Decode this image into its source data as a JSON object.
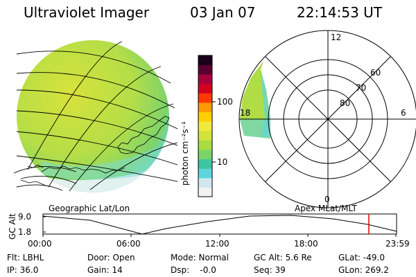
{
  "header": {
    "instrument": "Ultraviolet Imager",
    "date": "03 Jan 07",
    "time": "22:14:53 UT"
  },
  "colorbar": {
    "unit_label": "photon cm⁻²s⁻¹",
    "ticks": [
      {
        "label": "100",
        "value": 100
      },
      {
        "label": "10",
        "value": 10
      }
    ],
    "colors": [
      "#f2f2f2",
      "#cfe8f0",
      "#5fd6dd",
      "#3cc6a0",
      "#7ad46a",
      "#a8dc40",
      "#d2e43a",
      "#f0ea3c",
      "#ffd000",
      "#ff9a00",
      "#ff3a00",
      "#d40020",
      "#a8003c",
      "#5a0030",
      "#1a0018"
    ]
  },
  "left_panel": {
    "label": "Geographic Lat/Lon",
    "disk_color": "#b8e04a",
    "disk_edge_color": "#5fd6dd"
  },
  "right_panel": {
    "label": "Apex MLat/MLT",
    "mlt_labels": {
      "top": "12",
      "left": "18",
      "right": "6",
      "bottom": "0"
    },
    "lat_labels": [
      "60",
      "70",
      "80"
    ]
  },
  "timeline": {
    "y_label": "GC Alt",
    "y_ticks": [
      "9.0",
      "1.8"
    ],
    "x_ticks": [
      "00:00",
      "06:00",
      "12:00",
      "18:00",
      "23:59"
    ],
    "marker_color": "#dd0000"
  },
  "info": {
    "col1": [
      "Flt: LBHL",
      "IP: 36.0"
    ],
    "col2": [
      "Door: Open",
      "Gain: 14"
    ],
    "col3": [
      "Mode: Normal",
      "Dsp:    -0.0"
    ],
    "col4": [
      "GC Alt: 5.6 Re",
      "Seq: 39"
    ],
    "col5": [
      "GLat: -49.0",
      "GLon: 269.2"
    ]
  }
}
